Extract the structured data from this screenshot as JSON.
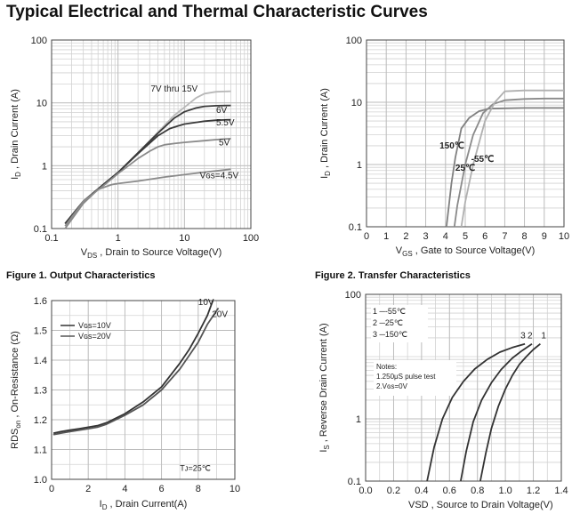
{
  "page": {
    "title": "Typical Electrical and Thermal Characteristic Curves"
  },
  "captions": {
    "fig1_num": "Figure 1.",
    "fig1_title": "Output Characteristics",
    "fig2_num": "Figure 2.",
    "fig2_title": "Transfer Characteristics"
  },
  "chart_data": [
    {
      "type": "line",
      "xlabel": "V_DS , Drain to Source Voltage(V)",
      "ylabel": "I_D , Drain Current (A)",
      "xscale": "log",
      "yscale": "log",
      "xlim": [
        0.1,
        100
      ],
      "ylim": [
        0.1,
        100
      ],
      "xticks": [
        0.1,
        1,
        10,
        100
      ],
      "xtick_labels": [
        "0.1",
        "1",
        "10",
        "100"
      ],
      "yticks": [
        0.1,
        1,
        10,
        100
      ],
      "ytick_labels": [
        "0.1",
        "1",
        "10",
        "100"
      ],
      "grid": true,
      "series": [
        {
          "name": "7V thru 15V",
          "color": "#b8b8b8",
          "label_x": 7,
          "label_y": 15,
          "x": [
            0.16,
            0.3,
            0.6,
            1,
            2,
            4,
            7,
            10,
            15,
            20,
            30,
            50
          ],
          "y": [
            0.12,
            0.27,
            0.5,
            0.78,
            1.6,
            3.4,
            6.3,
            8.5,
            12,
            14,
            15,
            15.3
          ]
        },
        {
          "name": "6V",
          "color": "#3a3a3a",
          "label_x": 30,
          "label_y": 6.9,
          "x": [
            0.16,
            0.3,
            0.6,
            1,
            2,
            4,
            7,
            10,
            15,
            20,
            30,
            50
          ],
          "y": [
            0.12,
            0.27,
            0.5,
            0.78,
            1.6,
            3.3,
            5.7,
            7.2,
            8.3,
            8.8,
            9.0,
            9.1
          ]
        },
        {
          "name": "5.5V",
          "color": "#3a3a3a",
          "label_x": 30,
          "label_y": 4.4,
          "x": [
            0.16,
            0.3,
            0.6,
            1,
            2,
            4,
            6,
            8,
            10,
            15,
            20,
            30,
            50
          ],
          "y": [
            0.12,
            0.27,
            0.5,
            0.78,
            1.55,
            3.0,
            3.9,
            4.3,
            4.6,
            4.9,
            5.1,
            5.3,
            5.4
          ]
        },
        {
          "name": "5V",
          "color": "#8a8a8a",
          "label_x": 33,
          "label_y": 2.1,
          "x": [
            0.16,
            0.3,
            0.6,
            1,
            2,
            3,
            4,
            5,
            7,
            10,
            20,
            30,
            50
          ],
          "y": [
            0.11,
            0.27,
            0.48,
            0.75,
            1.3,
            1.7,
            2.0,
            2.15,
            2.25,
            2.35,
            2.5,
            2.6,
            2.7
          ]
        },
        {
          "name": "Vɢs=4.5V",
          "color": "#8a8a8a",
          "label_x": 17,
          "label_y": 0.63,
          "x": [
            0.16,
            0.3,
            0.5,
            0.8,
            1,
            2,
            5,
            10,
            20,
            50
          ],
          "y": [
            0.1,
            0.25,
            0.42,
            0.5,
            0.52,
            0.57,
            0.66,
            0.72,
            0.79,
            0.88
          ]
        }
      ]
    },
    {
      "type": "line",
      "xlabel": "V_GS , Gate to Source Voltage(V)",
      "ylabel": "I_D , Drain Current (A)",
      "yscale": "log",
      "xlim": [
        0,
        10
      ],
      "ylim": [
        0.1,
        100
      ],
      "xticks": [
        0,
        1,
        2,
        3,
        4,
        5,
        6,
        7,
        8,
        9,
        10
      ],
      "xtick_labels": [
        "0",
        "1",
        "2",
        "3",
        "4",
        "5",
        "6",
        "7",
        "8",
        "9",
        "10"
      ],
      "yticks": [
        0.1,
        1,
        10,
        100
      ],
      "ytick_labels": [
        "0.1",
        "1",
        "10",
        "100"
      ],
      "grid": true,
      "series": [
        {
          "name": "150℃",
          "color": "#808080",
          "label_x": 3.7,
          "label_y": 1.8,
          "x": [
            4.05,
            4.3,
            4.5,
            4.8,
            5.2,
            5.7,
            6.2,
            7,
            8,
            9,
            10
          ],
          "y": [
            0.1,
            0.5,
            1.3,
            3.8,
            5.6,
            7.2,
            7.9,
            8.0,
            8.1,
            8.1,
            8.1
          ]
        },
        {
          "name": "25℃",
          "color": "#8a8a8a",
          "label_x": 4.5,
          "label_y": 0.8,
          "x": [
            4.45,
            4.6,
            5,
            5.4,
            5.9,
            6.4,
            7,
            8,
            9,
            10
          ],
          "y": [
            0.1,
            0.22,
            1.0,
            3.0,
            6.7,
            9.3,
            10.8,
            11.3,
            11.5,
            11.5
          ]
        },
        {
          "name": "-55℃",
          "color": "#b0b0b0",
          "label_x": 5.3,
          "label_y": 1.1,
          "x": [
            4.8,
            5,
            5.4,
            6,
            6.5,
            7,
            8,
            9,
            10
          ],
          "y": [
            0.1,
            0.25,
            1.0,
            5.0,
            10.0,
            15,
            15.5,
            15.5,
            15.5
          ]
        }
      ]
    },
    {
      "type": "line",
      "xlabel": "I_D , Drain Current(A)",
      "ylabel": "RDS_on , On-Resistance (Ω)",
      "xlim": [
        0,
        10
      ],
      "ylim": [
        1.0,
        1.6
      ],
      "xticks": [
        0,
        2,
        4,
        6,
        8,
        10
      ],
      "xtick_labels": [
        "0",
        "2",
        "4",
        "6",
        "8",
        "10"
      ],
      "yticks": [
        1.0,
        1.1,
        1.2,
        1.3,
        1.4,
        1.5,
        1.6
      ],
      "ytick_labels": [
        "1.0",
        "1.1",
        "1.2",
        "1.3",
        "1.4",
        "1.5",
        "1.6"
      ],
      "grid": true,
      "annotation": "Tᴊ=25℃",
      "legend": {
        "entries": [
          "Vɢs=10V",
          "Vɢs=20V"
        ]
      },
      "series": [
        {
          "name": "10V",
          "color": "#333333",
          "x": [
            0.1,
            0.5,
            1,
            1.5,
            2,
            2.5,
            3,
            4,
            5,
            6,
            7,
            7.5,
            8,
            8.5,
            8.8
          ],
          "y": [
            1.155,
            1.16,
            1.165,
            1.17,
            1.175,
            1.18,
            1.19,
            1.22,
            1.26,
            1.31,
            1.39,
            1.435,
            1.49,
            1.55,
            1.6
          ]
        },
        {
          "name": "20V",
          "color": "#555555",
          "x": [
            0.1,
            0.5,
            1,
            1.5,
            2,
            2.5,
            3,
            4,
            5,
            6,
            7,
            7.5,
            8,
            8.5,
            9.1
          ],
          "y": [
            1.15,
            1.155,
            1.16,
            1.165,
            1.17,
            1.175,
            1.185,
            1.215,
            1.25,
            1.3,
            1.37,
            1.415,
            1.46,
            1.52,
            1.575
          ]
        }
      ]
    },
    {
      "type": "line",
      "xlabel": "VSD , Source to Drain Voltage(V)",
      "ylabel": "I_S , Reverse Drain Current (A)",
      "yscale": "log",
      "xlim": [
        0,
        1.4
      ],
      "ylim": [
        0.1,
        100
      ],
      "xticks": [
        0,
        0.2,
        0.4,
        0.6,
        0.8,
        1.0,
        1.2,
        1.4
      ],
      "xtick_labels": [
        "0.0",
        "0.2",
        "0.4",
        "0.6",
        "0.8",
        "1.0",
        "1.2",
        "1.4"
      ],
      "yticks": [
        0.1,
        1,
        100
      ],
      "ytick_labels": [
        "0.1",
        "1",
        "100"
      ],
      "grid": true,
      "annotation": [
        "Notes:",
        "1.250μS pulse test",
        "2.Vɢs=0V"
      ],
      "legend": {
        "entries": [
          "1   ─-55℃",
          "2   ─25℃",
          "3   ─150℃"
        ]
      },
      "series": [
        {
          "name": "1",
          "color": "#333333",
          "x": [
            0.82,
            0.86,
            0.9,
            0.95,
            1.0,
            1.05,
            1.1,
            1.15,
            1.2,
            1.25
          ],
          "y": [
            0.1,
            0.28,
            0.7,
            1.6,
            3.0,
            5.0,
            7.5,
            10.0,
            13.0,
            16.0
          ]
        },
        {
          "name": "2",
          "color": "#333333",
          "x": [
            0.68,
            0.72,
            0.77,
            0.83,
            0.9,
            0.97,
            1.05,
            1.12,
            1.19
          ],
          "y": [
            0.1,
            0.3,
            0.9,
            2.0,
            3.8,
            6.2,
            9.5,
            12.5,
            16.0
          ]
        },
        {
          "name": "3",
          "color": "#333333",
          "x": [
            0.44,
            0.49,
            0.55,
            0.62,
            0.7,
            0.78,
            0.87,
            0.96,
            1.05,
            1.14
          ],
          "y": [
            0.1,
            0.35,
            1.0,
            2.2,
            4.0,
            6.3,
            9.0,
            11.8,
            14.0,
            16.0
          ]
        }
      ]
    }
  ]
}
